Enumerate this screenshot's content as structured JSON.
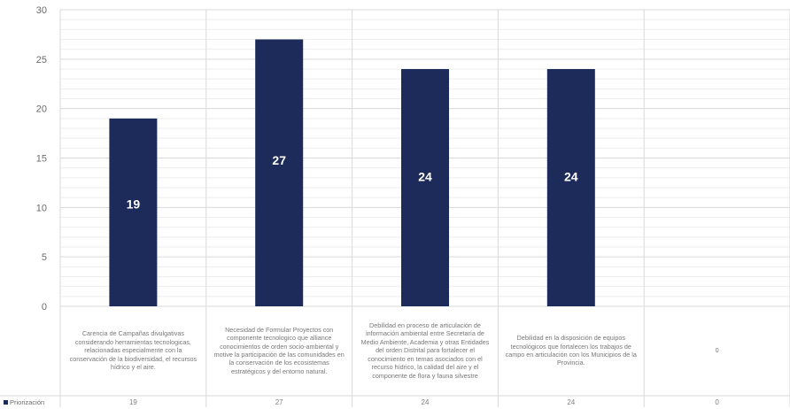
{
  "chart_data": {
    "type": "bar",
    "title": "",
    "xlabel": "",
    "ylabel": "",
    "ylim": [
      0,
      30
    ],
    "y_ticks": [
      0,
      5,
      10,
      15,
      20,
      25,
      30
    ],
    "grid": true,
    "legend_placement": "bottom-left (data table)",
    "categories": [
      "Carencia de Campañas divulgativas considerando herramientas tecnologicas, relacionadas especialmente con la conservación de la biodiversidad, el recursos hídrico y el aire.",
      "Necesidad de Formular Proyectos con componente tecnologico que alliance conocimientos de orden socio-ambiental y motive la participación de las comunidades en la conservación de los ecosistemas estratégicos y del entorno natural.",
      "Debilidad en proceso de articulación de información ambiental entre Secretaría de Medio Ambiente, Academia y otras Entidades del orden Distrital para fortalecer el conocimiento en temas asociados con el recurso hídrico, la calidad del aire y el componente de flora y fauna silvestre",
      "Debilidad en la disposición de equipos tecnológicos que fortalecen los trabajos de campo en articulación con los Municipios de la Provincia.",
      "0"
    ],
    "series": [
      {
        "name": "Priorización",
        "values": [
          19,
          27,
          24,
          24,
          0
        ]
      }
    ],
    "data_labels": [
      "19",
      "27",
      "24",
      "24"
    ],
    "table_values": [
      "19",
      "27",
      "24",
      "24",
      "0"
    ],
    "colors": {
      "bar": "#1c2b5a",
      "grid_major": "#d9d9d9",
      "grid_minor": "#eeeeee",
      "axis_text": "#6b6b6b",
      "label_text": "#ffffff"
    }
  }
}
